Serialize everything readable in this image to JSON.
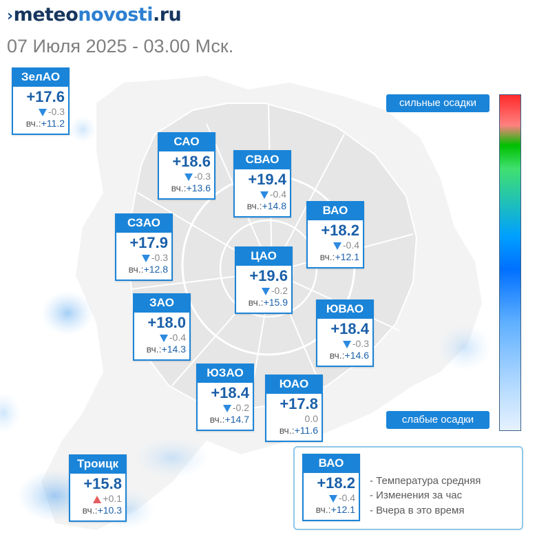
{
  "header": {
    "logo_mark": "›",
    "logo_meteo": "meteo",
    "logo_novosti": "novosti",
    "logo_ru": ".ru",
    "subtitle": "07 Июля 2025 - 03.00 Мск."
  },
  "districts": [
    {
      "name": "ЗелАО",
      "temp": "+17.6",
      "delta": "-0.3",
      "trend": "down",
      "yday_label": "вч.:",
      "yday": "+11.2"
    },
    {
      "name": "САО",
      "temp": "+18.6",
      "delta": "-0.3",
      "trend": "down",
      "yday_label": "вч.:",
      "yday": "+13.6"
    },
    {
      "name": "СВАО",
      "temp": "+19.4",
      "delta": "-0.4",
      "trend": "down",
      "yday_label": "вч.:",
      "yday": "+14.8"
    },
    {
      "name": "ВАО",
      "temp": "+18.2",
      "delta": "-0.4",
      "trend": "down",
      "yday_label": "вч.:",
      "yday": "+12.1"
    },
    {
      "name": "СЗАО",
      "temp": "+17.9",
      "delta": "-0.3",
      "trend": "down",
      "yday_label": "вч.:",
      "yday": "+12.8"
    },
    {
      "name": "ЦАО",
      "temp": "+19.6",
      "delta": "-0.2",
      "trend": "down",
      "yday_label": "вч.:",
      "yday": "+15.9"
    },
    {
      "name": "ЗАО",
      "temp": "+18.0",
      "delta": "-0.4",
      "trend": "down",
      "yday_label": "вч.:",
      "yday": "+14.3"
    },
    {
      "name": "ЮВАО",
      "temp": "+18.4",
      "delta": "-0.3",
      "trend": "down",
      "yday_label": "вч.:",
      "yday": "+14.6"
    },
    {
      "name": "ЮЗАО",
      "temp": "+18.4",
      "delta": "-0.2",
      "trend": "down",
      "yday_label": "вч.:",
      "yday": "+14.7"
    },
    {
      "name": "ЮАО",
      "temp": "+17.8",
      "delta": "0.0",
      "trend": "none",
      "yday_label": "вч.:",
      "yday": "+11.6"
    },
    {
      "name": "Троицк",
      "temp": "+15.8",
      "delta": "+0.1",
      "trend": "up",
      "yday_label": "вч.:",
      "yday": "+10.3"
    }
  ],
  "precip_scale": {
    "high_label": "сильные осадки",
    "low_label": "слабые осадки"
  },
  "legend": {
    "sample": {
      "name": "ВАО",
      "temp": "+18.2",
      "delta": "-0.4",
      "trend": "down",
      "yday_label": "вч.:",
      "yday": "+12.1"
    },
    "temp_desc": "- Температура средняя",
    "change_desc": "- Изменения за час",
    "yday_desc": "- Вчера в это время"
  },
  "colors": {
    "accent": "#1a84d8",
    "temp_text": "#1a5fa8",
    "trend_down": "#2c8ae0",
    "trend_up": "#e55c5c"
  }
}
